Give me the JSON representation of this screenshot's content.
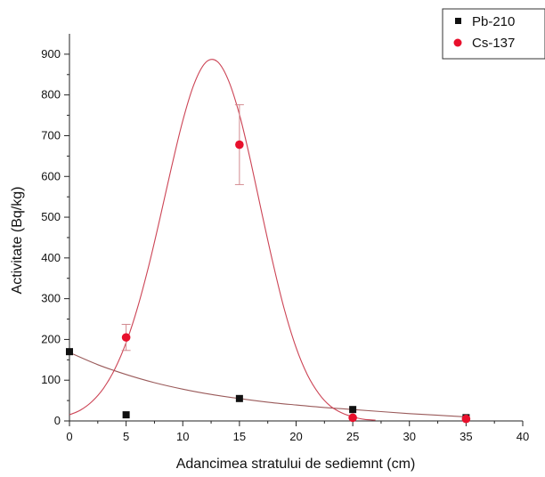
{
  "chart_data": {
    "type": "scatter",
    "title": "",
    "xlabel": "Adancimea stratului de sediemnt (cm)",
    "ylabel": "Activitate (Bq/kg)",
    "xlim": [
      0,
      40
    ],
    "ylim": [
      0,
      950
    ],
    "x_ticks": [
      0,
      5,
      10,
      15,
      20,
      25,
      30,
      35,
      40
    ],
    "y_ticks": [
      0,
      100,
      200,
      300,
      400,
      500,
      600,
      700,
      800,
      900
    ],
    "grid": false,
    "legend_position": "top-right",
    "series": [
      {
        "name": "Pb-210",
        "color": "#111111",
        "marker": "square",
        "x": [
          0,
          5,
          15,
          25,
          35
        ],
        "y": [
          170,
          15,
          55,
          28,
          8
        ],
        "errors": [
          0,
          0,
          0,
          0,
          0
        ],
        "fit": {
          "kind": "exponential-decay",
          "x": [
            0,
            2.5,
            5,
            7.5,
            10,
            12.5,
            15,
            17.5,
            20,
            22.5,
            25,
            27.5,
            30,
            32.5,
            35
          ],
          "y": [
            168,
            138,
            114,
            94,
            78,
            65,
            55,
            46,
            39,
            33,
            28,
            23,
            18,
            14,
            10
          ]
        }
      },
      {
        "name": "Cs-137",
        "color": "#e8102c",
        "marker": "circle",
        "x": [
          5,
          15,
          25,
          35
        ],
        "y": [
          205,
          678,
          8,
          5
        ],
        "errors": [
          32,
          98,
          0,
          0
        ],
        "fit": {
          "kind": "gaussian",
          "x": [
            0,
            1,
            2,
            3,
            4,
            5,
            6,
            7,
            8,
            9,
            10,
            11,
            12,
            13,
            14,
            15,
            16,
            17,
            18,
            19,
            20,
            21,
            22,
            23,
            24,
            25,
            26,
            27
          ],
          "y": [
            15,
            27,
            48,
            80,
            127,
            192,
            277,
            381,
            499,
            622,
            737,
            827,
            879,
            883,
            838,
            752,
            636,
            507,
            382,
            270,
            180,
            113,
            67,
            37,
            20,
            10,
            4,
            2
          ]
        }
      }
    ]
  }
}
